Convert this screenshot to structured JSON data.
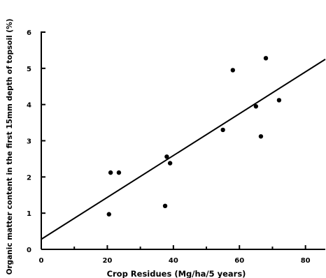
{
  "chart_data": {
    "type": "scatter",
    "title": "",
    "xlabel": "Crop Residues (Mg/ha/5 years)",
    "ylabel": "Organic matter content in the first 15mm depth of topsoil (%)",
    "xlim": [
      0,
      86
    ],
    "ylim": [
      0,
      6
    ],
    "x_ticks": [
      0,
      20,
      40,
      60,
      80
    ],
    "y_ticks": [
      0,
      1,
      2,
      3,
      4,
      5,
      6
    ],
    "grid": false,
    "points": [
      {
        "x": 20.5,
        "y": 0.97
      },
      {
        "x": 21.0,
        "y": 2.12
      },
      {
        "x": 23.5,
        "y": 2.12
      },
      {
        "x": 37.5,
        "y": 1.2
      },
      {
        "x": 38.0,
        "y": 2.56
      },
      {
        "x": 39.0,
        "y": 2.38
      },
      {
        "x": 55.0,
        "y": 3.3
      },
      {
        "x": 58.0,
        "y": 4.95
      },
      {
        "x": 65.0,
        "y": 3.95
      },
      {
        "x": 66.5,
        "y": 3.12
      },
      {
        "x": 68.0,
        "y": 5.28
      },
      {
        "x": 72.0,
        "y": 4.12
      }
    ],
    "trendline": {
      "type": "linear",
      "x": [
        0,
        86
      ],
      "y": [
        0.28,
        5.25
      ]
    },
    "colors": {
      "axis": "#000000",
      "points": "#000000",
      "line": "#000000"
    }
  }
}
